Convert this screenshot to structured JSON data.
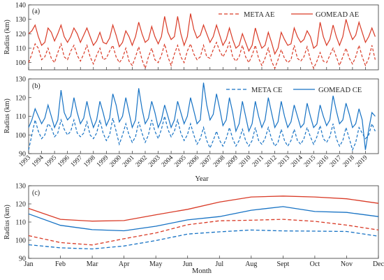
{
  "colors": {
    "ae": "#d93a26",
    "ce": "#1672c4",
    "axis": "#333333"
  },
  "chart_data": [
    {
      "type": "line",
      "panel_label": "(a)",
      "ylabel": "Radius (km)",
      "ylim": [
        95,
        140
      ],
      "yticks": [
        100,
        110,
        120,
        130,
        140
      ],
      "xlim": [
        1993.0,
        2020.0
      ],
      "xtick_labels": [
        "1993",
        "1994",
        "1995",
        "1996",
        "1997",
        "1998",
        "1999",
        "2000",
        "2001",
        "2002",
        "2003",
        "2004",
        "2005",
        "2006",
        "2007",
        "2008",
        "2009",
        "2010",
        "2011",
        "2012",
        "2013",
        "2014",
        "2015",
        "2016",
        "2017",
        "2018",
        "2019"
      ],
      "legend_position": "top-right",
      "series": [
        {
          "name": "META AE",
          "style": "dashed",
          "color_key": "ae",
          "x0": 1993.0,
          "dx": 0.25,
          "values": [
            100,
            106,
            113,
            110,
            102,
            104,
            110,
            103,
            100,
            107,
            113,
            104,
            102,
            108,
            112,
            105,
            101,
            106,
            112,
            104,
            99,
            105,
            110,
            102,
            103,
            108,
            112,
            104,
            100,
            103,
            110,
            101,
            98,
            104,
            111,
            102,
            96,
            104,
            110,
            102,
            100,
            105,
            113,
            104,
            98,
            106,
            112,
            104,
            100,
            108,
            113,
            106,
            102,
            104,
            112,
            104,
            103,
            109,
            114,
            108,
            104,
            108,
            114,
            104,
            101,
            104,
            112,
            104,
            100,
            105,
            112,
            103,
            98,
            103,
            110,
            101,
            96,
            102,
            109,
            103,
            100,
            102,
            112,
            103,
            101,
            104,
            111,
            102,
            96,
            101,
            107,
            101,
            100,
            105,
            110,
            104,
            98,
            104,
            110,
            103,
            99,
            104,
            112,
            104,
            98,
            103,
            112,
            102
          ]
        },
        {
          "name": "GOMEAD AE",
          "style": "solid",
          "color_key": "ae",
          "x0": 1993.0,
          "dx": 0.25,
          "values": [
            120,
            122,
            126,
            118,
            112,
            114,
            124,
            121,
            115,
            120,
            126,
            118,
            114,
            118,
            124,
            120,
            114,
            119,
            124,
            118,
            112,
            115,
            121,
            114,
            113,
            117,
            126,
            119,
            111,
            114,
            122,
            118,
            112,
            118,
            128,
            120,
            114,
            116,
            125,
            118,
            113,
            118,
            132,
            121,
            116,
            118,
            132,
            120,
            112,
            118,
            134,
            123,
            117,
            119,
            126,
            120,
            114,
            118,
            126,
            119,
            112,
            116,
            124,
            116,
            110,
            112,
            120,
            114,
            108,
            112,
            124,
            116,
            110,
            112,
            121,
            114,
            106,
            110,
            121,
            116,
            112,
            113,
            124,
            118,
            114,
            116,
            122,
            118,
            110,
            112,
            128,
            118,
            112,
            116,
            126,
            118,
            112,
            118,
            130,
            122,
            116,
            119,
            128,
            121,
            114,
            118,
            124,
            118
          ]
        },
        {
          "name": "",
          "style": "dashed",
          "color_key": "ae",
          "note": ""
        }
      ]
    },
    {
      "type": "line",
      "panel_label": "(b)",
      "ylabel": "Radius (km)",
      "xlabel": "Year",
      "ylim": [
        90,
        130
      ],
      "yticks": [
        90,
        100,
        110,
        120,
        130
      ],
      "xlim": [
        1993.0,
        2020.0
      ],
      "xtick_labels": [
        "1993",
        "1994",
        "1995",
        "1996",
        "1997",
        "1998",
        "1999",
        "2000",
        "2001",
        "2002",
        "2003",
        "2004",
        "2005",
        "2006",
        "2007",
        "2008",
        "2009",
        "2010",
        "2011",
        "2012",
        "2013",
        "2014",
        "2015",
        "2016",
        "2017",
        "2018",
        "2019"
      ],
      "legend_position": "top-right",
      "series": [
        {
          "name": "META CE",
          "style": "dashed",
          "color_key": "ce",
          "x0": 1993.0,
          "dx": 0.25,
          "values": [
            92,
            100,
            108,
            102,
            98,
            100,
            106,
            104,
            99,
            101,
            108,
            103,
            100,
            102,
            108,
            101,
            99,
            101,
            107,
            100,
            98,
            101,
            108,
            101,
            97,
            100,
            109,
            102,
            95,
            100,
            106,
            100,
            96,
            99,
            107,
            101,
            96,
            100,
            108,
            102,
            98,
            103,
            110,
            103,
            99,
            102,
            108,
            101,
            97,
            100,
            106,
            100,
            95,
            98,
            104,
            97,
            93,
            97,
            102,
            97,
            94,
            98,
            104,
            98,
            94,
            97,
            103,
            97,
            94,
            97,
            104,
            97,
            95,
            98,
            104,
            98,
            94,
            96,
            103,
            97,
            94,
            97,
            103,
            97,
            95,
            98,
            104,
            99,
            95,
            99,
            105,
            98,
            96,
            99,
            106,
            98,
            94,
            97,
            104,
            98,
            92,
            96,
            104,
            101,
            98,
            100,
            106,
            102
          ]
        },
        {
          "name": "GOMEAD CE",
          "style": "solid",
          "color_key": "ce",
          "x0": 1993.0,
          "dx": 0.25,
          "values": [
            104,
            108,
            114,
            110,
            106,
            109,
            116,
            110,
            104,
            108,
            124,
            112,
            108,
            110,
            120,
            112,
            106,
            109,
            118,
            110,
            104,
            108,
            118,
            112,
            105,
            109,
            122,
            116,
            107,
            110,
            120,
            112,
            104,
            108,
            125,
            114,
            106,
            109,
            118,
            112,
            104,
            108,
            116,
            110,
            104,
            108,
            118,
            112,
            106,
            110,
            120,
            113,
            106,
            108,
            128,
            116,
            108,
            111,
            122,
            114,
            105,
            108,
            120,
            112,
            102,
            106,
            118,
            110,
            102,
            106,
            118,
            110,
            104,
            108,
            120,
            112,
            104,
            107,
            118,
            110,
            104,
            107,
            116,
            110,
            104,
            106,
            117,
            110,
            104,
            106,
            116,
            110,
            105,
            108,
            121,
            113,
            106,
            108,
            117,
            111,
            104,
            106,
            114,
            108,
            92,
            103,
            112,
            110
          ]
        }
      ]
    },
    {
      "type": "line",
      "panel_label": "(c)",
      "ylabel": "Radius (km)",
      "xlabel": "Month",
      "ylim": [
        90,
        130
      ],
      "yticks": [
        90,
        100,
        110,
        120,
        130
      ],
      "categories": [
        "Jan",
        "Feb",
        "Mar",
        "Apr",
        "May",
        "Jun",
        "Jul",
        "Aug",
        "Sept",
        "Oct",
        "Nov",
        "Dec"
      ],
      "series": [
        {
          "style": "solid",
          "color_key": "ae",
          "values": [
            117.5,
            111.5,
            110.5,
            110.8,
            114.0,
            117.0,
            121.0,
            123.8,
            124.3,
            123.8,
            122.8,
            120.3
          ]
        },
        {
          "style": "dashed",
          "color_key": "ae",
          "values": [
            102.5,
            98.7,
            97.4,
            100.8,
            104.0,
            108.5,
            110.7,
            111.0,
            111.5,
            110.4,
            108.3,
            105.6
          ]
        },
        {
          "style": "solid",
          "color_key": "ce",
          "values": [
            114.5,
            108.2,
            105.8,
            105.2,
            107.7,
            111.2,
            113.0,
            116.5,
            118.5,
            115.8,
            115.3,
            113.0
          ]
        },
        {
          "style": "dashed",
          "color_key": "ce",
          "values": [
            97.5,
            95.8,
            95.2,
            96.8,
            99.8,
            103.4,
            104.6,
            105.6,
            105.1,
            105.0,
            104.8,
            102.2
          ]
        }
      ]
    }
  ]
}
